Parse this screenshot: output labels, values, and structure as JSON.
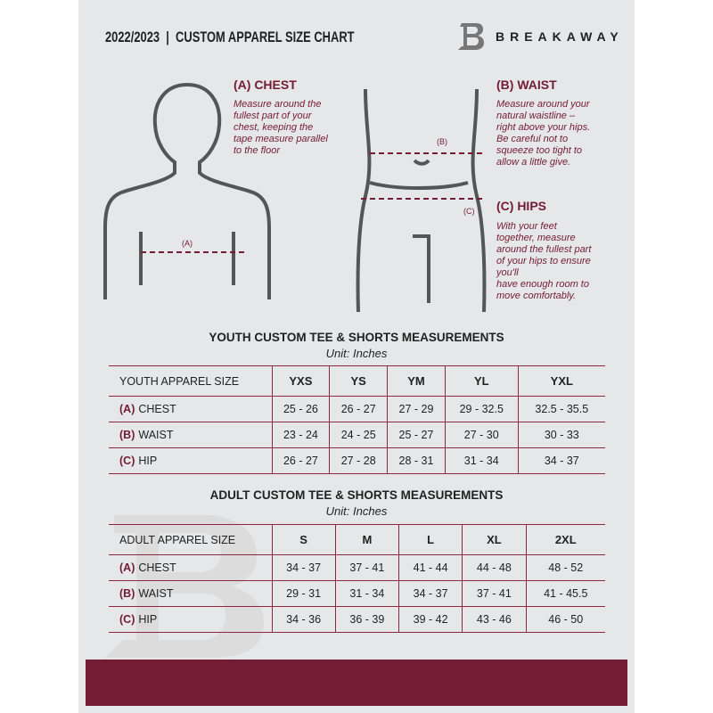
{
  "header": {
    "title": "2022/2023  |  CUSTOM APPAREL SIZE CHART",
    "brand": "BREAKAWAY"
  },
  "measures": {
    "chest": {
      "title": "(A) CHEST",
      "desc": [
        "Measure around the",
        "fullest part of your",
        "chest, keeping the",
        "tape measure parallel",
        "to the floor"
      ],
      "marker": "(A)"
    },
    "waist": {
      "title": "(B) WAIST",
      "desc": [
        "Measure around your",
        "natural waistline –",
        "right above your hips.",
        "Be careful not to",
        "squeeze too tight to",
        "allow a little give."
      ],
      "marker": "(B)"
    },
    "hips": {
      "title": "(C) HIPS",
      "desc": [
        "With your feet",
        "together, measure",
        "around the fullest part",
        "of your hips to ensure",
        "you'll",
        "have enough room to",
        "move comfortably."
      ],
      "marker": "(C)"
    }
  },
  "youth": {
    "title": "YOUTH CUSTOM TEE & SHORTS MEASUREMENTS",
    "unit": "Unit: Inches",
    "header": "YOUTH APPAREL SIZE",
    "sizes": [
      "YXS",
      "YS",
      "YM",
      "YL",
      "YXL"
    ],
    "rows": [
      {
        "code": "(A)",
        "name": "CHEST",
        "values": [
          "25 - 26",
          "26 - 27",
          "27 - 29",
          "29 - 32.5",
          "32.5 - 35.5"
        ]
      },
      {
        "code": "(B)",
        "name": "WAIST",
        "values": [
          "23 - 24",
          "24 - 25",
          "25 - 27",
          "27 - 30",
          "30 - 33"
        ]
      },
      {
        "code": "(C)",
        "name": "HIP",
        "values": [
          "26 - 27",
          "27 - 28",
          "28 - 31",
          "31 - 34",
          "34 - 37"
        ]
      }
    ]
  },
  "adult": {
    "title": "ADULT CUSTOM TEE & SHORTS MEASUREMENTS",
    "unit": "Unit: Inches",
    "header": "ADULT APPAREL SIZE",
    "sizes": [
      "S",
      "M",
      "L",
      "XL",
      "2XL"
    ],
    "rows": [
      {
        "code": "(A)",
        "name": "CHEST",
        "values": [
          "34 - 37",
          "37 - 41",
          "41 - 44",
          "44 - 48",
          "48 - 52"
        ]
      },
      {
        "code": "(B)",
        "name": "WAIST",
        "values": [
          "29 - 31",
          "31 - 34",
          "34 - 37",
          "37 - 41",
          "41 - 45.5"
        ]
      },
      {
        "code": "(C)",
        "name": "HIP",
        "values": [
          "34 - 36",
          "36 - 39",
          "39 - 42",
          "43 - 46",
          "46 - 50"
        ]
      }
    ]
  },
  "colors": {
    "accent": "#731c33",
    "background": "#e6e7e8"
  }
}
